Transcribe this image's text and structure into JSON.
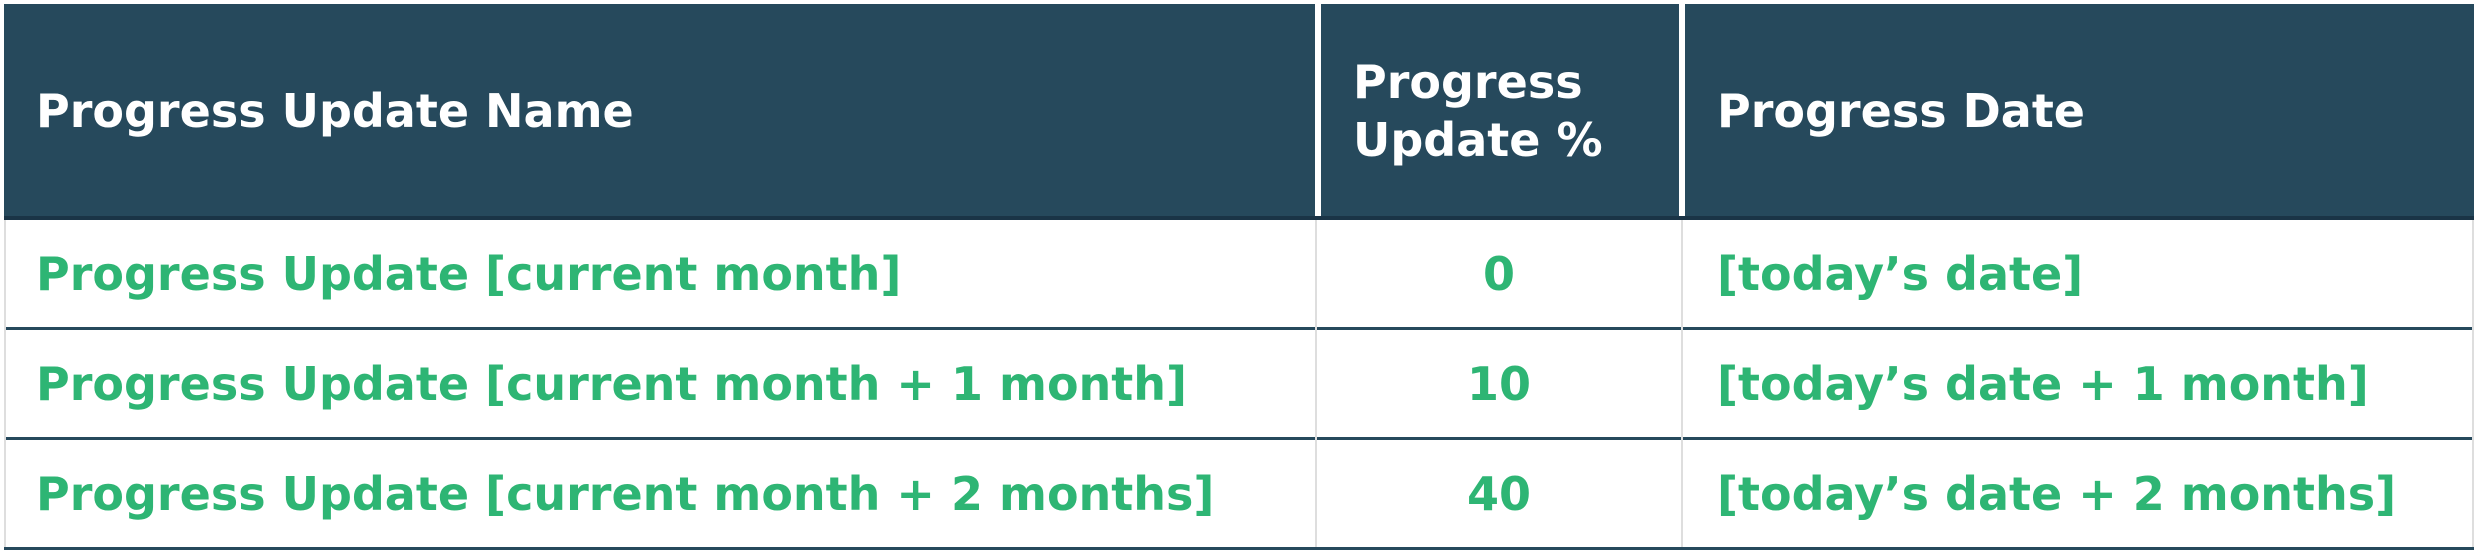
{
  "colors": {
    "header_bg": "#26495c",
    "header_text": "#ffffff",
    "body_text": "#2eb574",
    "row_line": "#26495c",
    "column_line": "#dedede"
  },
  "table": {
    "headers": [
      "Progress Update Name",
      "Progress Update %",
      "Progress Date"
    ],
    "rows": [
      {
        "name": "Progress Update [current month]",
        "percent": "0",
        "date": "[today’s date]"
      },
      {
        "name": "Progress Update [current month + 1 month]",
        "percent": "10",
        "date": "[today’s date + 1 month]"
      },
      {
        "name": "Progress Update [current month + 2 months]",
        "percent": "40",
        "date": "[today’s date + 2 months]"
      }
    ]
  }
}
